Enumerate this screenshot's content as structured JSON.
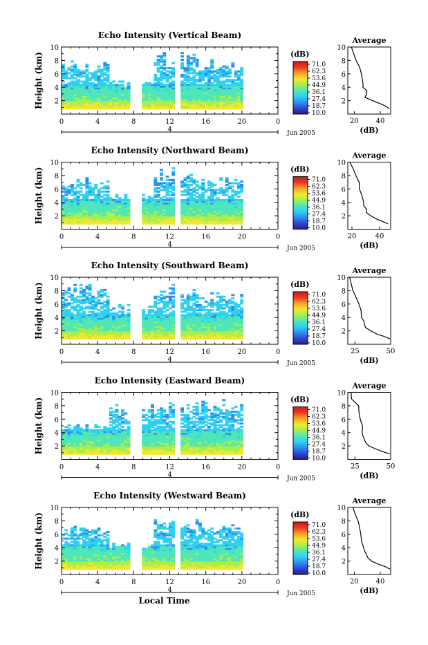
{
  "colorbar_unit": "(dB)",
  "colorbar_ticks": [
    "71.0",
    "62.3",
    "53.6",
    "44.9",
    "36.1",
    "27.4",
    "18.7",
    "10.0"
  ],
  "colorbar_colors": [
    "#2a1c8a",
    "#2f47d6",
    "#2f8ef0",
    "#2fd0f0",
    "#4fe6b8",
    "#a8ee4e",
    "#f4e62c",
    "#f7a02a",
    "#ea3a26",
    "#c81a1a"
  ],
  "date_label": "Jun 2005",
  "day_label": "4",
  "xlabel": "Local Time",
  "average_title": "Average",
  "average_xlabel": "(dB)",
  "panels": [
    {
      "title": "Echo Intensity (Vertical Beam)",
      "ylabel": "Height (km)",
      "chart_data": {
        "type": "heatmap",
        "x_ticks": [
          "0",
          "4",
          "8",
          "12",
          "16",
          "20",
          "0"
        ],
        "x_range": [
          0,
          24
        ],
        "y_ticks": [
          "2",
          "4",
          "6",
          "8",
          "10"
        ],
        "y_range": [
          0,
          10
        ],
        "data_gaps_hours": [
          [
            7.8,
            8.6
          ],
          [
            12.6,
            12.9
          ]
        ],
        "max_height_km": [
          7.2,
          4.5,
          8.6,
          7.4
        ],
        "avg_profile": {
          "x_ticks": [
            "20",
            "40"
          ],
          "x_range": [
            15,
            48
          ],
          "height_km": [
            0.8,
            1.2,
            1.5,
            2.0,
            2.5,
            3.0,
            3.5,
            4.0,
            4.5,
            5.0,
            6.0,
            7.0,
            8.0,
            9.0,
            10.0
          ],
          "db": [
            47,
            44,
            40,
            34,
            28,
            30,
            30,
            27,
            27,
            26,
            25,
            24,
            22,
            20,
            18
          ]
        }
      }
    },
    {
      "title": "Echo Intensity (Northward Beam)",
      "ylabel": "Height (km)",
      "chart_data": {
        "type": "heatmap",
        "x_ticks": [
          "0",
          "4",
          "8",
          "12",
          "16",
          "20",
          "0"
        ],
        "x_range": [
          0,
          24
        ],
        "y_ticks": [
          "2",
          "4",
          "6",
          "8",
          "10"
        ],
        "y_range": [
          0,
          10
        ],
        "data_gaps_hours": [
          [
            7.8,
            8.6
          ],
          [
            12.6,
            12.9
          ]
        ],
        "max_height_km": [
          7.0,
          5.0,
          8.4,
          7.0
        ],
        "avg_profile": {
          "x_ticks": [
            "20",
            "40"
          ],
          "x_range": [
            17,
            48
          ],
          "height_km": [
            0.8,
            1.2,
            1.5,
            2.0,
            2.5,
            3.0,
            3.5,
            4.0,
            5.0,
            6.0,
            7.0,
            8.0,
            9.0,
            10.0
          ],
          "db": [
            46,
            42,
            38,
            33,
            31,
            30,
            29,
            28,
            27,
            26,
            25,
            23,
            21,
            19
          ]
        }
      }
    },
    {
      "title": "Echo Intensity (Southward Beam)",
      "ylabel": "Height (km)",
      "chart_data": {
        "type": "heatmap",
        "x_ticks": [
          "0",
          "4",
          "8",
          "12",
          "16",
          "20",
          "0"
        ],
        "x_range": [
          0,
          24
        ],
        "y_ticks": [
          "2",
          "4",
          "6",
          "8",
          "10"
        ],
        "y_range": [
          0,
          10
        ],
        "data_gaps_hours": [
          [
            7.8,
            8.6
          ],
          [
            12.6,
            12.9
          ]
        ],
        "max_height_km": [
          8.2,
          5.5,
          8.2,
          7.2
        ],
        "avg_profile": {
          "x_ticks": [
            "25",
            "50"
          ],
          "x_range": [
            20,
            50
          ],
          "height_km": [
            0.8,
            1.2,
            1.5,
            2.0,
            2.5,
            3.0,
            3.5,
            4.0,
            5.0,
            6.0,
            7.0,
            8.0,
            9.0,
            10.0
          ],
          "db": [
            49,
            45,
            41,
            36,
            33,
            32,
            31,
            30,
            29,
            28,
            26,
            24,
            22,
            21
          ]
        }
      }
    },
    {
      "title": "Echo Intensity (Eastward Beam)",
      "ylabel": "Height (km)",
      "chart_data": {
        "type": "heatmap",
        "x_ticks": [
          "0",
          "4",
          "8",
          "12",
          "16",
          "20",
          "0"
        ],
        "x_range": [
          0,
          24
        ],
        "y_ticks": [
          "2",
          "4",
          "6",
          "8",
          "10"
        ],
        "y_range": [
          0,
          10
        ],
        "data_gaps_hours": [
          [
            7.8,
            8.6
          ],
          [
            12.6,
            12.9
          ]
        ],
        "max_height_km": [
          5.0,
          7.5,
          7.8,
          8.0
        ],
        "avg_profile": {
          "x_ticks": [
            "25",
            "50"
          ],
          "x_range": [
            20,
            50
          ],
          "height_km": [
            0.8,
            1.2,
            1.5,
            2.0,
            2.5,
            3.0,
            3.5,
            4.0,
            5.0,
            6.0,
            7.0,
            8.0,
            9.0,
            10.0
          ],
          "db": [
            49,
            44,
            40,
            35,
            33,
            32,
            31,
            30,
            30,
            29,
            28,
            27,
            23,
            22
          ]
        }
      }
    },
    {
      "title": "Echo Intensity (Westward Beam)",
      "ylabel": "Height (km)",
      "chart_data": {
        "type": "heatmap",
        "x_ticks": [
          "0",
          "4",
          "8",
          "12",
          "16",
          "20",
          "0"
        ],
        "x_range": [
          0,
          24
        ],
        "y_ticks": [
          "2",
          "4",
          "6",
          "8",
          "10"
        ],
        "y_range": [
          0,
          10
        ],
        "data_gaps_hours": [
          [
            7.8,
            8.6
          ],
          [
            12.6,
            12.9
          ]
        ],
        "max_height_km": [
          6.5,
          4.2,
          7.5,
          7.0
        ],
        "avg_profile": {
          "x_ticks": [
            "20",
            "40"
          ],
          "x_range": [
            15,
            48
          ],
          "height_km": [
            0.8,
            1.2,
            1.5,
            2.0,
            2.5,
            3.0,
            3.5,
            4.0,
            5.0,
            6.0,
            7.0,
            8.0,
            9.0,
            10.0
          ],
          "db": [
            47,
            43,
            39,
            33,
            30,
            29,
            28,
            27,
            26,
            25,
            24,
            23,
            21,
            19
          ]
        }
      }
    }
  ]
}
